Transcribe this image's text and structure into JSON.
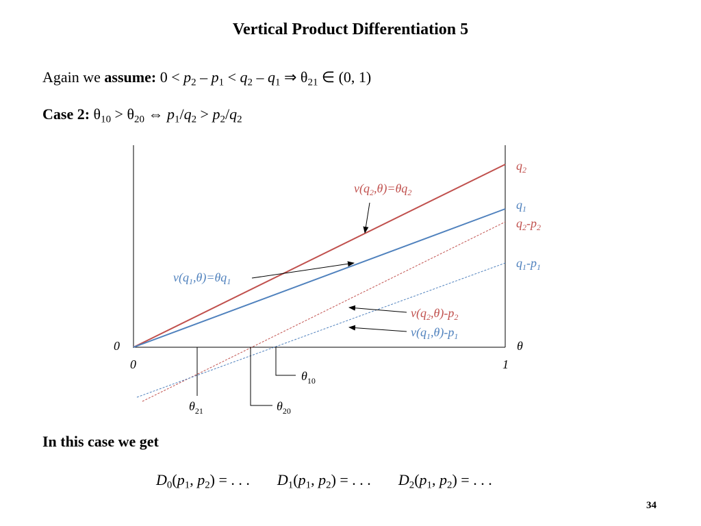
{
  "slide": {
    "title": "Vertical Product Differentiation 5",
    "assume_text": "Again we",
    "assume_bold": "assume:",
    "case_label": "Case 2:",
    "in_this_case": "In this case we get",
    "page_number": "34",
    "demand": {
      "d0_tail": "(p1, p2) = . . .",
      "d1_tail": "(p1, p2) = . . .",
      "d2_tail": "(p1, p2) = . . ."
    }
  },
  "diagram": {
    "origin_y_label": "0",
    "origin_x_label": "0",
    "x_end_label": "1",
    "x_axis_label": "θ",
    "line_labels": {
      "q2": "q2",
      "q1": "q1",
      "q2_minus_p2": "q2-p2",
      "q1_minus_p1": "q1-p1"
    },
    "curve_labels": {
      "v_q2": "v(q2,θ)=θq2",
      "v_q1": "v(q1,θ)=θq1",
      "v_q2_p2": "v(q2,θ)-p2",
      "v_q1_p1": "v(q1,θ)-p1"
    },
    "theta_labels": {
      "theta10": "θ10",
      "theta20": "θ20",
      "theta21": "θ21"
    },
    "colors": {
      "q2": "#c0504d",
      "q1": "#4f81bd"
    }
  }
}
